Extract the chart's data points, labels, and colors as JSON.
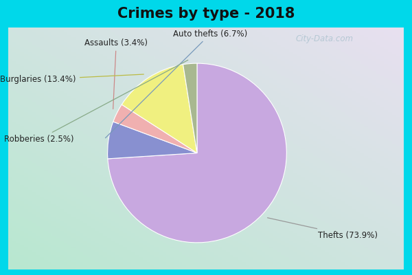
{
  "title": "Crimes by type - 2018",
  "title_fontsize": 15,
  "title_fontweight": "bold",
  "labels": [
    "Thefts",
    "Auto thefts",
    "Assaults",
    "Burglaries",
    "Robberies"
  ],
  "values": [
    73.9,
    6.7,
    3.4,
    13.4,
    2.5
  ],
  "colors": [
    "#c8a8e0",
    "#8890d0",
    "#f0b0b0",
    "#f0f080",
    "#a8b890"
  ],
  "bg_cyan": "#00d8ea",
  "bg_body_top_left": "#b8e8d0",
  "bg_body_bottom_right": "#e8e0f0",
  "label_texts": [
    "Thefts (73.9%)",
    "Auto thefts (6.7%)",
    "Assaults (3.4%)",
    "Burglaries (13.4%)",
    "Robberies (2.5%)"
  ],
  "startangle": 90,
  "watermark": "City-Data.com"
}
